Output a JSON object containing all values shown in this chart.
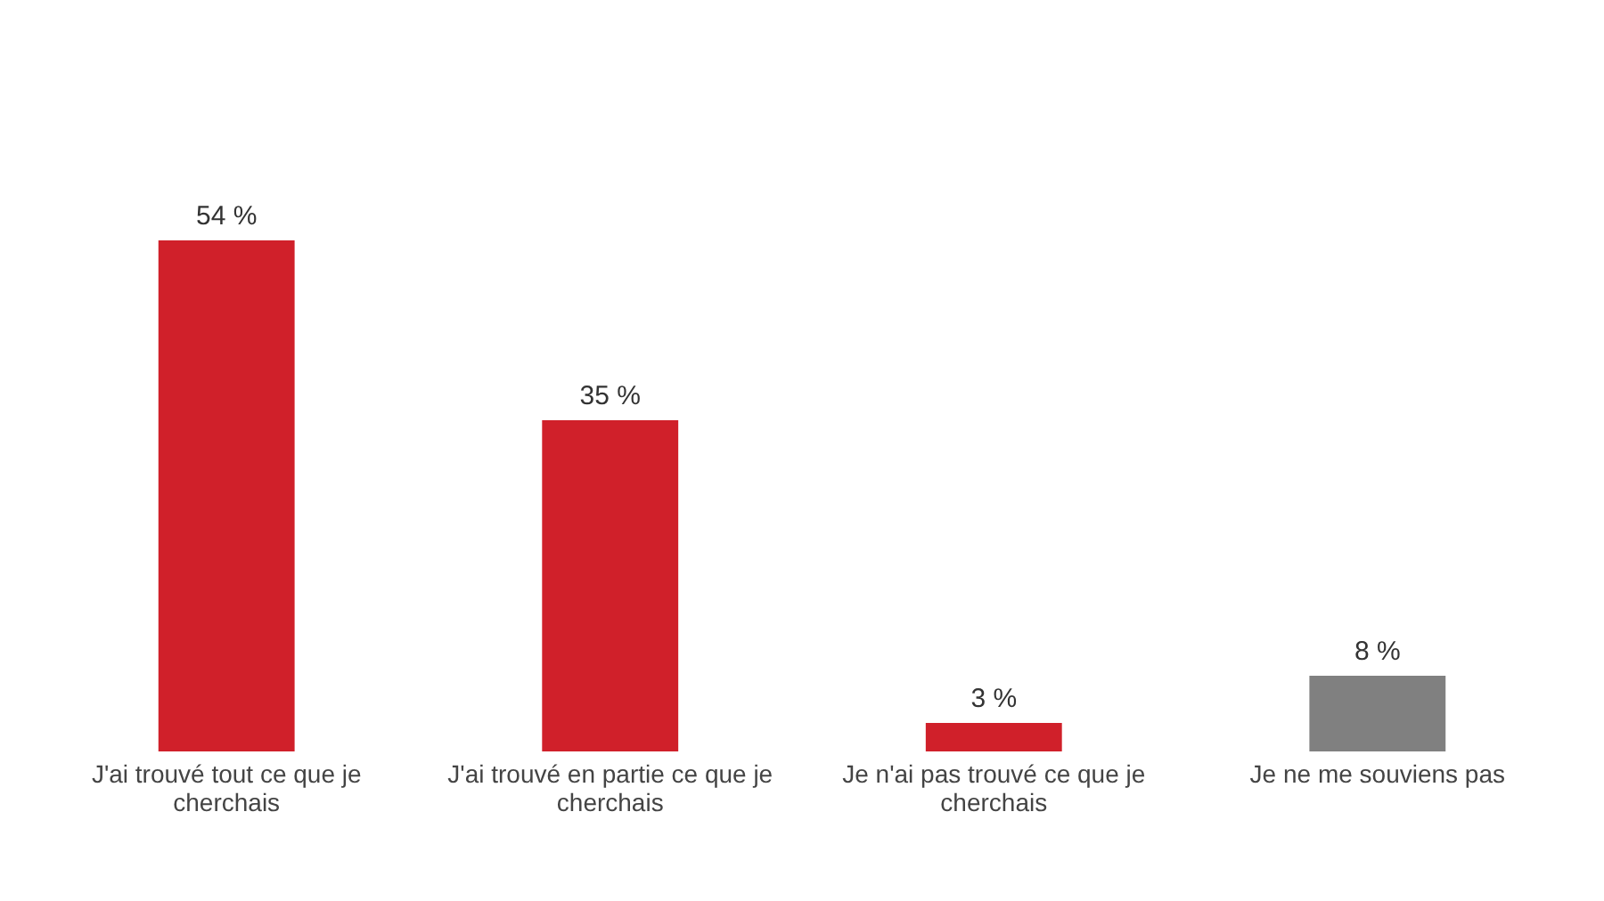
{
  "chart_data": {
    "type": "bar",
    "categories": [
      "J'ai trouvé tout ce que je cherchais",
      "J'ai trouvé en partie ce que je cherchais",
      "Je n'ai pas trouvé ce que je cherchais",
      "Je ne me souviens pas"
    ],
    "values": [
      54,
      35,
      3,
      8
    ],
    "colors": [
      "#d0202a",
      "#d0202a",
      "#d0202a",
      "#808080"
    ],
    "value_labels": [
      "54 %",
      "35 %",
      "3 %",
      "8 %"
    ]
  }
}
